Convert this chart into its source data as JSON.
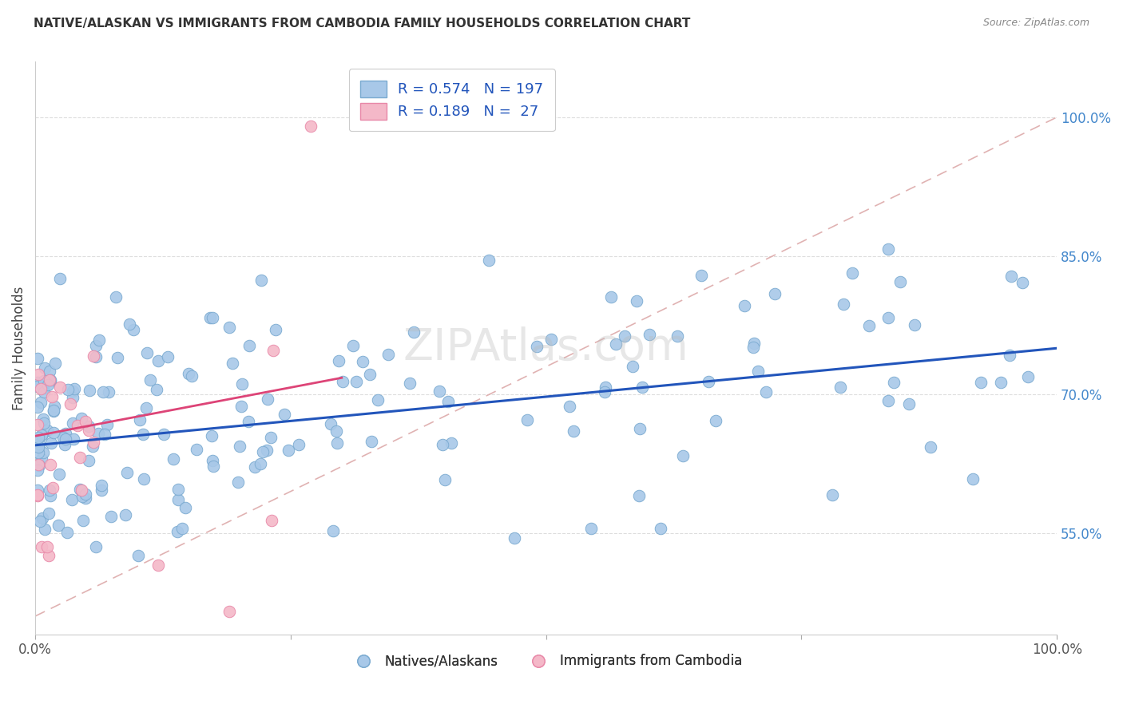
{
  "title": "NATIVE/ALASKAN VS IMMIGRANTS FROM CAMBODIA FAMILY HOUSEHOLDS CORRELATION CHART",
  "source": "Source: ZipAtlas.com",
  "ylabel": "Family Households",
  "xlim": [
    0.0,
    1.0
  ],
  "ylim": [
    0.44,
    1.06
  ],
  "yticks": [
    0.55,
    0.7,
    0.85,
    1.0
  ],
  "ytick_labels": [
    "55.0%",
    "70.0%",
    "85.0%",
    "100.0%"
  ],
  "xticks": [
    0.0,
    0.25,
    0.5,
    0.75,
    1.0
  ],
  "xtick_labels": [
    "0.0%",
    "",
    "",
    "",
    "100.0%"
  ],
  "blue_scatter_color": "#a8c8e8",
  "blue_scatter_edge": "#7aaad0",
  "pink_scatter_color": "#f4b8c8",
  "pink_scatter_edge": "#e888a8",
  "blue_line_color": "#2255bb",
  "pink_line_color": "#dd4477",
  "dashed_line_color": "#ddaaaa",
  "legend_blue_label": "R = 0.574   N = 197",
  "legend_pink_label": "R = 0.189   N =  27",
  "legend_native_label": "Natives/Alaskans",
  "legend_cambodia_label": "Immigrants from Cambodia",
  "watermark": "ZIPAtlas.com",
  "R_blue": 0.574,
  "N_blue": 197,
  "R_pink": 0.189,
  "N_pink": 27,
  "blue_intercept": 0.645,
  "blue_slope": 0.105,
  "pink_intercept": 0.655,
  "pink_slope": 0.21,
  "dashed_intercept": 0.46,
  "dashed_slope": 0.54,
  "title_fontsize": 11,
  "source_fontsize": 9,
  "tick_fontsize": 12,
  "legend_fontsize": 13
}
